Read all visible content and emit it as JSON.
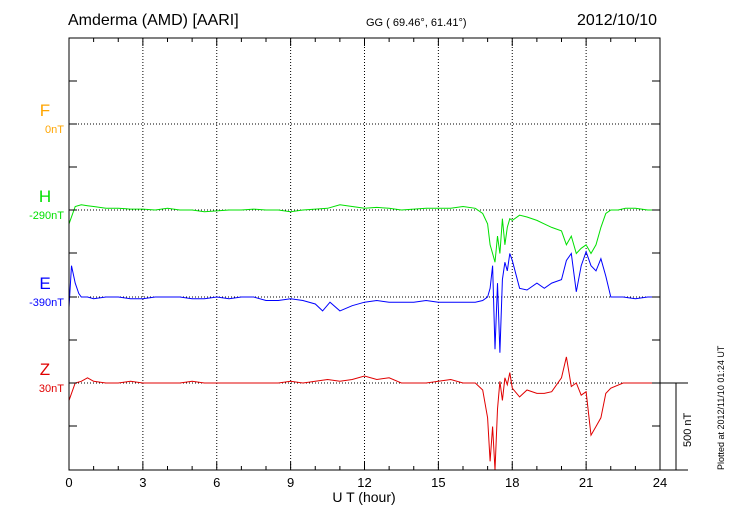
{
  "header": {
    "station": "Amderma (AMD)  [AARI]",
    "coords": "GG ( 69.46°,  61.41°)",
    "date": "2012/10/10"
  },
  "footer": {
    "plotted": "Plotted at 2012/11/10 01:24  UT"
  },
  "chart_data": {
    "type": "line",
    "xlabel": "U T (hour)",
    "xlim": [
      0,
      24
    ],
    "xticks": [
      0,
      3,
      6,
      9,
      12,
      15,
      18,
      21,
      24
    ],
    "scale_bar": "500 nT",
    "grid": true,
    "series": [
      {
        "name": "F",
        "baseline": "0nT",
        "color": "#ffa500",
        "x": [],
        "values": []
      },
      {
        "name": "H",
        "baseline": "-290nT",
        "color": "#00e000",
        "x": [
          0,
          0.25,
          0.5,
          0.75,
          1,
          1.5,
          2,
          2.5,
          3,
          3.5,
          4,
          4.5,
          5,
          5.5,
          6,
          6.5,
          7,
          7.5,
          8,
          8.5,
          9,
          9.5,
          10,
          10.5,
          11,
          11.5,
          12,
          12.5,
          13,
          13.5,
          14,
          14.5,
          15,
          15.5,
          16,
          16.5,
          16.8,
          17,
          17.1,
          17.2,
          17.3,
          17.4,
          17.5,
          17.6,
          17.7,
          17.8,
          17.9,
          18,
          18.3,
          18.6,
          19,
          19.3,
          19.6,
          20,
          20.2,
          20.4,
          20.6,
          20.8,
          21,
          21.2,
          21.4,
          21.6,
          21.8,
          22,
          22.3,
          22.6,
          23,
          23.5,
          24
        ],
        "values": [
          -80,
          20,
          30,
          25,
          20,
          10,
          10,
          5,
          5,
          0,
          10,
          0,
          0,
          -10,
          -5,
          0,
          0,
          5,
          0,
          0,
          -10,
          0,
          5,
          10,
          30,
          20,
          10,
          15,
          10,
          0,
          5,
          10,
          10,
          10,
          20,
          10,
          -20,
          -80,
          -200,
          -250,
          -300,
          -150,
          -250,
          -50,
          -200,
          -100,
          -50,
          -60,
          -30,
          -40,
          -60,
          -80,
          -100,
          -120,
          -200,
          -150,
          -250,
          -220,
          -200,
          -250,
          -200,
          -100,
          -20,
          0,
          0,
          10,
          10,
          0,
          0
        ]
      },
      {
        "name": "E",
        "baseline": "-390nT",
        "color": "#0000ff",
        "x": [
          0,
          0.1,
          0.25,
          0.4,
          0.5,
          0.75,
          1,
          1.5,
          2,
          2.5,
          3,
          3.5,
          4,
          4.5,
          5,
          5.5,
          6,
          6.5,
          7,
          7.5,
          8,
          8.5,
          9,
          9.5,
          10,
          10.3,
          10.6,
          11,
          11.5,
          12,
          12.5,
          13,
          13.5,
          14,
          14.5,
          15,
          15.5,
          16,
          16.5,
          16.8,
          17,
          17.1,
          17.2,
          17.3,
          17.4,
          17.5,
          17.6,
          17.7,
          17.8,
          17.9,
          18,
          18.3,
          18.6,
          19,
          19.3,
          19.6,
          20,
          20.2,
          20.4,
          20.6,
          20.8,
          21,
          21.2,
          21.4,
          21.6,
          21.8,
          22,
          22.5,
          23,
          23.5,
          24
        ],
        "values": [
          -60,
          180,
          80,
          20,
          0,
          0,
          -10,
          0,
          0,
          -10,
          -10,
          0,
          0,
          0,
          -10,
          -10,
          0,
          -10,
          0,
          0,
          -20,
          -20,
          -10,
          -20,
          -40,
          -80,
          -30,
          -80,
          -50,
          -30,
          -20,
          -30,
          -30,
          -30,
          -20,
          -30,
          -30,
          -30,
          -30,
          -20,
          0,
          50,
          180,
          -300,
          80,
          -320,
          100,
          200,
          150,
          250,
          210,
          50,
          40,
          80,
          50,
          80,
          100,
          210,
          250,
          30,
          180,
          260,
          180,
          150,
          220,
          120,
          0,
          0,
          -10,
          0,
          0
        ]
      },
      {
        "name": "Z",
        "baseline": "30nT",
        "color": "#e00000",
        "x": [
          0,
          0.1,
          0.25,
          0.5,
          0.75,
          1,
          1.5,
          2,
          2.5,
          3,
          3.5,
          4,
          4.5,
          5,
          5.5,
          6,
          6.5,
          7,
          7.5,
          8,
          8.5,
          9,
          9.5,
          10,
          10.5,
          11,
          11.5,
          12,
          12.5,
          13,
          13.5,
          14,
          14.5,
          15,
          15.5,
          16,
          16.5,
          16.8,
          17,
          17.1,
          17.2,
          17.3,
          17.4,
          17.5,
          17.6,
          17.7,
          17.8,
          17.9,
          18,
          18.3,
          18.6,
          19,
          19.3,
          19.6,
          20,
          20.2,
          20.4,
          20.6,
          20.8,
          21,
          21.2,
          21.4,
          21.6,
          21.8,
          22,
          22.5,
          23,
          23.5,
          24
        ],
        "values": [
          -100,
          -60,
          0,
          10,
          30,
          10,
          0,
          0,
          10,
          0,
          0,
          0,
          0,
          10,
          0,
          0,
          0,
          0,
          0,
          0,
          0,
          10,
          0,
          10,
          20,
          10,
          20,
          40,
          20,
          30,
          0,
          0,
          0,
          10,
          20,
          0,
          0,
          -40,
          -200,
          -450,
          -250,
          -500,
          -150,
          10,
          -100,
          30,
          -10,
          60,
          -30,
          -80,
          -40,
          -60,
          -60,
          -50,
          30,
          150,
          -20,
          0,
          -70,
          -50,
          -300,
          -250,
          -200,
          -60,
          -30,
          0,
          0,
          0,
          0
        ]
      }
    ]
  }
}
